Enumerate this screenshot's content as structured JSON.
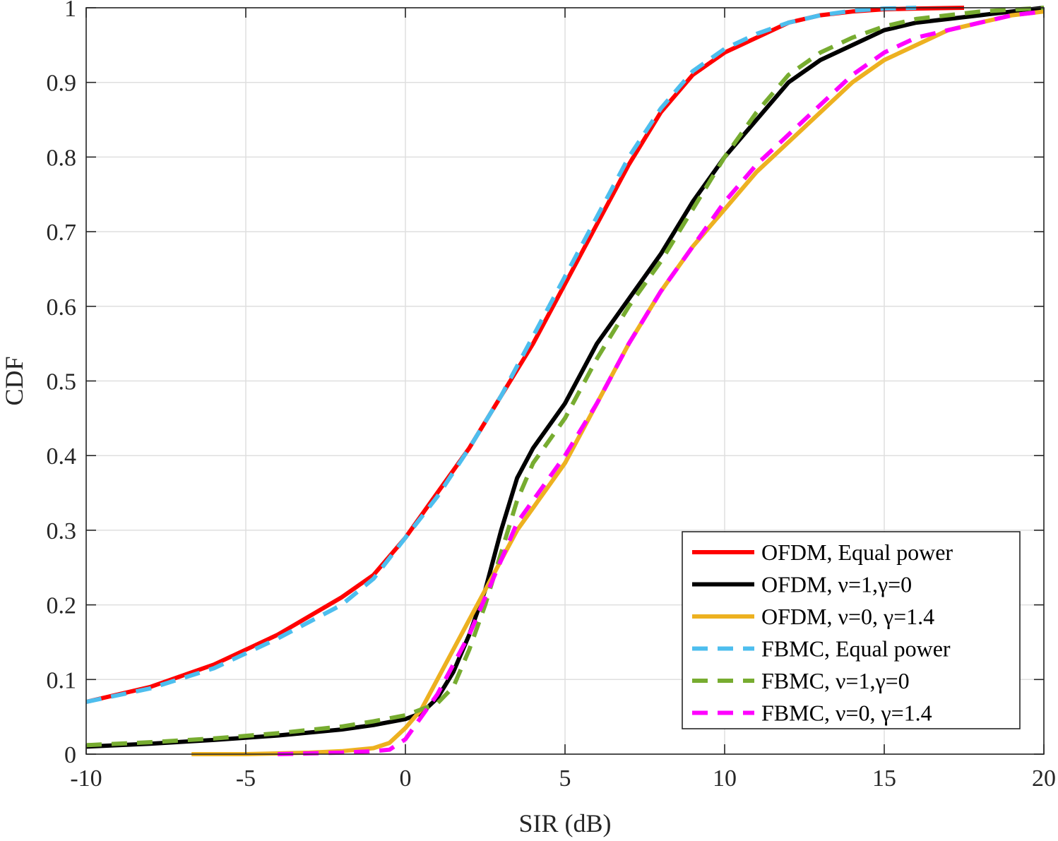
{
  "chart_data": {
    "type": "line",
    "xlabel": "SIR (dB)",
    "ylabel": "CDF",
    "xlim": [
      -10,
      20
    ],
    "ylim": [
      0,
      1
    ],
    "xticks": [
      -10,
      -5,
      0,
      5,
      10,
      15,
      20
    ],
    "yticks": [
      0,
      0.1,
      0.2,
      0.3,
      0.4,
      0.5,
      0.6,
      0.7,
      0.8,
      0.9,
      1
    ],
    "xtick_labels": [
      "-10",
      "-5",
      "0",
      "5",
      "10",
      "15",
      "20"
    ],
    "ytick_labels": [
      "0",
      "0.1",
      "0.2",
      "0.3",
      "0.4",
      "0.5",
      "0.6",
      "0.7",
      "0.8",
      "0.9",
      "1"
    ],
    "grid": true,
    "legend_position": "bottom-right",
    "series": [
      {
        "name": "OFDM, Equal power",
        "color": "#ff0000",
        "style": "solid",
        "x": [
          -10,
          -8,
          -6,
          -4,
          -2,
          -1,
          0,
          1,
          2,
          3,
          4,
          5,
          6,
          7,
          8,
          9,
          10,
          11,
          12,
          13,
          14,
          15,
          16,
          17.5
        ],
        "y": [
          0.07,
          0.09,
          0.12,
          0.16,
          0.21,
          0.24,
          0.29,
          0.35,
          0.41,
          0.48,
          0.55,
          0.63,
          0.71,
          0.79,
          0.86,
          0.91,
          0.94,
          0.96,
          0.98,
          0.99,
          0.995,
          0.998,
          0.999,
          1.0
        ]
      },
      {
        "name": "OFDM, ν=1,γ=0",
        "color": "#000000",
        "style": "solid",
        "x": [
          -10,
          -8,
          -6,
          -4,
          -2,
          -1,
          0,
          0.5,
          1,
          1.5,
          2,
          2.5,
          3,
          3.5,
          4,
          5,
          6,
          7,
          8,
          9,
          10,
          11,
          12,
          13,
          14,
          15,
          16,
          18,
          20
        ],
        "y": [
          0.01,
          0.014,
          0.019,
          0.025,
          0.033,
          0.039,
          0.047,
          0.055,
          0.075,
          0.11,
          0.16,
          0.22,
          0.3,
          0.37,
          0.41,
          0.47,
          0.55,
          0.61,
          0.67,
          0.74,
          0.8,
          0.85,
          0.9,
          0.93,
          0.95,
          0.97,
          0.98,
          0.99,
          1.0
        ]
      },
      {
        "name": "OFDM, ν=0, γ=1.4",
        "color": "#edb120",
        "style": "solid",
        "x": [
          -6.7,
          -5,
          -3,
          -2,
          -1,
          -0.5,
          0,
          0.5,
          1,
          1.5,
          2,
          2.5,
          3,
          3.5,
          4,
          5,
          6,
          7,
          8,
          9,
          10,
          11,
          12,
          13,
          14,
          15,
          16,
          17,
          18,
          19,
          20
        ],
        "y": [
          0.0,
          0.0,
          0.002,
          0.004,
          0.008,
          0.015,
          0.035,
          0.06,
          0.1,
          0.14,
          0.18,
          0.22,
          0.26,
          0.3,
          0.33,
          0.39,
          0.47,
          0.55,
          0.62,
          0.68,
          0.73,
          0.78,
          0.82,
          0.86,
          0.9,
          0.93,
          0.95,
          0.97,
          0.98,
          0.99,
          0.995
        ]
      },
      {
        "name": "FBMC, Equal power",
        "color": "#4dbeee",
        "style": "dashed",
        "x": [
          -10,
          -8,
          -6,
          -4,
          -2,
          -1,
          0,
          1,
          2,
          3,
          4,
          5,
          6,
          7,
          8,
          9,
          10,
          11,
          12,
          13,
          14,
          15,
          16
        ],
        "y": [
          0.07,
          0.088,
          0.115,
          0.155,
          0.2,
          0.235,
          0.29,
          0.345,
          0.41,
          0.48,
          0.56,
          0.64,
          0.72,
          0.8,
          0.865,
          0.915,
          0.945,
          0.965,
          0.98,
          0.99,
          0.996,
          0.999,
          1.0
        ]
      },
      {
        "name": "FBMC, ν=1,γ=0",
        "color": "#77ac30",
        "style": "dashed",
        "x": [
          -10,
          -8,
          -6,
          -4,
          -2,
          -1,
          0,
          0.5,
          1,
          1.5,
          2,
          2.5,
          3,
          3.5,
          4,
          5,
          6,
          7,
          8,
          9,
          10,
          11,
          12,
          13,
          14,
          15,
          16,
          18,
          20
        ],
        "y": [
          0.012,
          0.016,
          0.021,
          0.028,
          0.037,
          0.044,
          0.052,
          0.06,
          0.068,
          0.09,
          0.14,
          0.2,
          0.27,
          0.34,
          0.39,
          0.45,
          0.53,
          0.6,
          0.66,
          0.73,
          0.8,
          0.86,
          0.91,
          0.94,
          0.96,
          0.975,
          0.985,
          0.995,
          1.0
        ]
      },
      {
        "name": "FBMC, ν=0, γ=1.4",
        "color": "#ff00ff",
        "style": "dashed",
        "x": [
          -4,
          -3,
          -2,
          -1,
          -0.5,
          0,
          0.5,
          1,
          1.5,
          2,
          2.5,
          3,
          3.5,
          4,
          5,
          6,
          7,
          8,
          9,
          10,
          11,
          12,
          13,
          14,
          15,
          16,
          17,
          18,
          19,
          20
        ],
        "y": [
          0.0,
          0.001,
          0.002,
          0.004,
          0.006,
          0.02,
          0.05,
          0.08,
          0.12,
          0.16,
          0.21,
          0.26,
          0.31,
          0.34,
          0.4,
          0.47,
          0.55,
          0.62,
          0.68,
          0.74,
          0.79,
          0.83,
          0.87,
          0.91,
          0.94,
          0.96,
          0.97,
          0.98,
          0.99,
          0.995
        ]
      }
    ]
  }
}
